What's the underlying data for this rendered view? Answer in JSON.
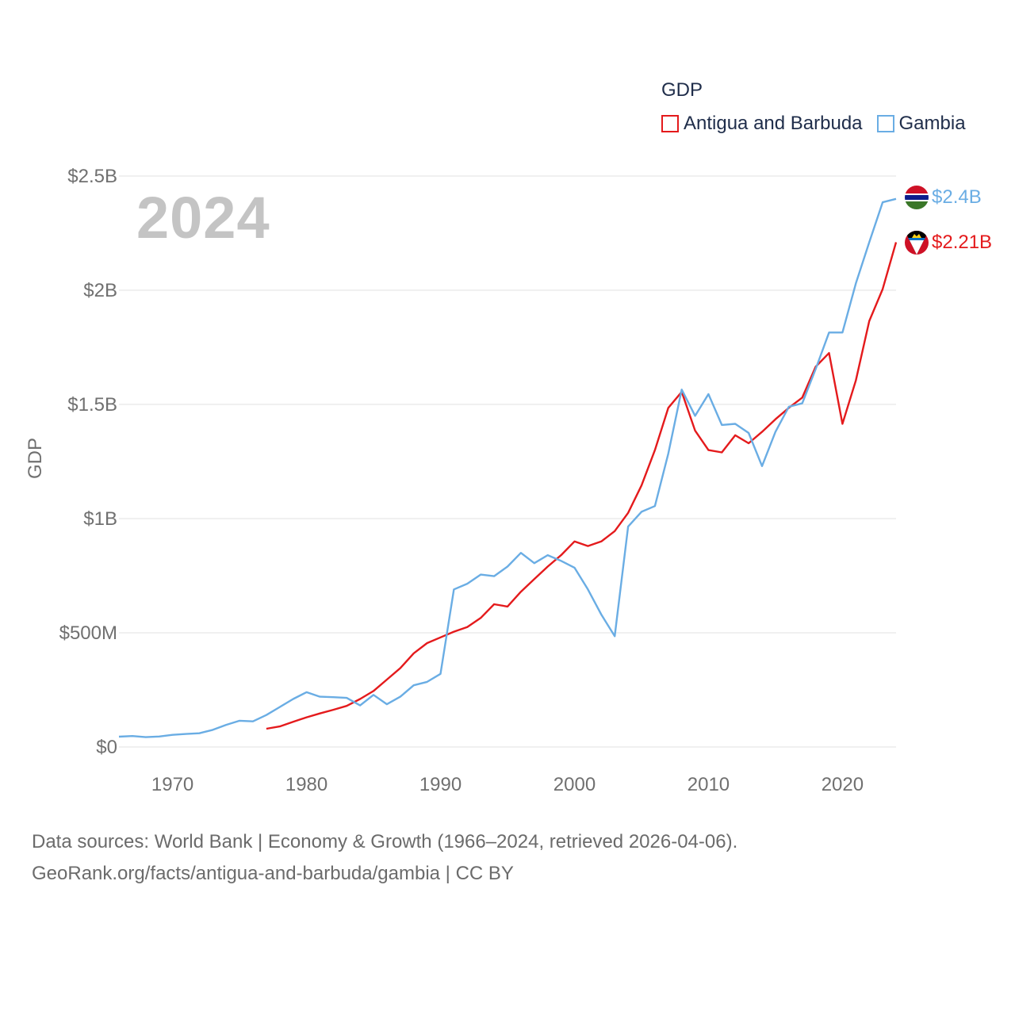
{
  "legend": {
    "title": "GDP",
    "items": [
      {
        "label": "Antigua and Barbuda",
        "color": "#e41a1c"
      },
      {
        "label": "Gambia",
        "color": "#6aade4"
      }
    ]
  },
  "watermark_year": "2024",
  "end_labels": {
    "antigua": "$2.21B",
    "gambia": "$2.4B"
  },
  "footer": {
    "line1": "Data sources: World Bank | Economy & Growth (1966–2024, retrieved 2026-04-06).",
    "line2": "GeoRank.org/facts/antigua-and-barbuda/gambia | CC BY"
  },
  "chart_data": {
    "type": "line",
    "title": "GDP",
    "ylabel": "GDP",
    "xlabel": "",
    "xlim": [
      1966,
      2024
    ],
    "ylim": [
      0,
      2.5
    ],
    "y_unit": "billion USD",
    "x_ticks": [
      1970,
      1980,
      1990,
      2000,
      2010,
      2020
    ],
    "y_ticks": [
      {
        "value": 0,
        "label": "$0"
      },
      {
        "value": 0.5,
        "label": "$500M"
      },
      {
        "value": 1,
        "label": "$1B"
      },
      {
        "value": 1.5,
        "label": "$1.5B"
      },
      {
        "value": 2,
        "label": "$2B"
      },
      {
        "value": 2.5,
        "label": "$2.5B"
      }
    ],
    "grid": true,
    "legend_position": "top-right",
    "series": [
      {
        "name": "Antigua and Barbuda",
        "key": "antigua",
        "color": "#e41a1c",
        "x": [
          1977,
          1978,
          1979,
          1980,
          1981,
          1982,
          1983,
          1984,
          1985,
          1986,
          1987,
          1988,
          1989,
          1990,
          1991,
          1992,
          1993,
          1994,
          1995,
          1996,
          1997,
          1998,
          1999,
          2000,
          2001,
          2002,
          2003,
          2004,
          2005,
          2006,
          2007,
          2008,
          2009,
          2010,
          2011,
          2012,
          2013,
          2014,
          2015,
          2016,
          2017,
          2018,
          2019,
          2020,
          2021,
          2022,
          2023,
          2024
        ],
        "values": [
          0.08,
          0.09,
          0.11,
          0.13,
          0.147,
          0.163,
          0.18,
          0.21,
          0.245,
          0.295,
          0.345,
          0.41,
          0.455,
          0.48,
          0.505,
          0.525,
          0.565,
          0.625,
          0.615,
          0.68,
          0.735,
          0.79,
          0.84,
          0.9,
          0.88,
          0.9,
          0.945,
          1.025,
          1.145,
          1.3,
          1.485,
          1.555,
          1.385,
          1.3,
          1.29,
          1.365,
          1.33,
          1.38,
          1.435,
          1.485,
          1.53,
          1.665,
          1.725,
          1.415,
          1.605,
          1.865,
          2.005,
          2.21
        ]
      },
      {
        "name": "Gambia",
        "key": "gambia",
        "color": "#6aade4",
        "x": [
          1966,
          1967,
          1968,
          1969,
          1970,
          1971,
          1972,
          1973,
          1974,
          1975,
          1976,
          1977,
          1978,
          1979,
          1980,
          1981,
          1982,
          1983,
          1984,
          1985,
          1986,
          1987,
          1988,
          1989,
          1990,
          1991,
          1992,
          1993,
          1994,
          1995,
          1996,
          1997,
          1998,
          1999,
          2000,
          2001,
          2002,
          2003,
          2004,
          2005,
          2006,
          2007,
          2008,
          2009,
          2010,
          2011,
          2012,
          2013,
          2014,
          2015,
          2016,
          2017,
          2018,
          2019,
          2020,
          2021,
          2022,
          2023,
          2024
        ],
        "values": [
          0.045,
          0.048,
          0.043,
          0.046,
          0.053,
          0.057,
          0.06,
          0.075,
          0.097,
          0.115,
          0.112,
          0.14,
          0.175,
          0.21,
          0.24,
          0.22,
          0.218,
          0.215,
          0.182,
          0.228,
          0.187,
          0.22,
          0.27,
          0.285,
          0.32,
          0.69,
          0.715,
          0.755,
          0.748,
          0.79,
          0.85,
          0.805,
          0.84,
          0.815,
          0.785,
          0.69,
          0.58,
          0.485,
          0.965,
          1.03,
          1.055,
          1.285,
          1.565,
          1.45,
          1.545,
          1.41,
          1.415,
          1.375,
          1.23,
          1.38,
          1.49,
          1.505,
          1.655,
          1.815,
          1.815,
          2.03,
          2.21,
          2.385,
          2.4
        ]
      }
    ]
  }
}
